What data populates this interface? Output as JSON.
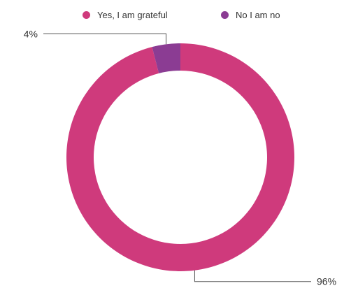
{
  "chart_data": {
    "type": "pie",
    "variant": "donut",
    "title": "",
    "legend_position": "top",
    "slices": [
      {
        "label": "Yes, I am grateful",
        "value": 96,
        "display": "96%",
        "color": "#cf3a7c"
      },
      {
        "label": "No I am no",
        "value": 4,
        "display": "4%",
        "color": "#8b3c93"
      }
    ]
  }
}
